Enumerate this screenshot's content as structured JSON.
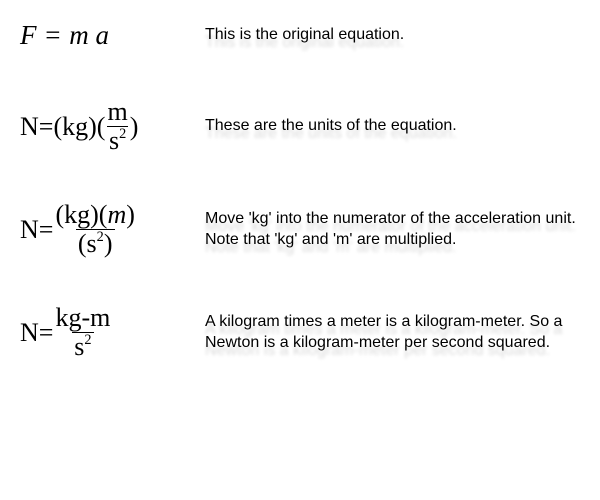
{
  "rows": [
    {
      "eq": {
        "F": "F",
        "eq": "=",
        "m": "m",
        "a": "a"
      },
      "desc": "This is the original equation."
    },
    {
      "eq": {
        "N": "N",
        "eq": "=",
        "lp1": "(",
        "kg": "kg",
        "rp1": ")",
        "lp2": "(",
        "m": "m",
        "s": "s",
        "two": "2",
        "rp2": ")"
      },
      "desc": "These are the units of the equation."
    },
    {
      "eq": {
        "N": "N",
        "eq": "=",
        "lp1": "(",
        "kg": "kg",
        "rp1": ")",
        "lp2": "(",
        "m": "m",
        "rp2": ")",
        "lp3": "(",
        "s": "s",
        "two": "2",
        "rp3": ")"
      },
      "desc": "Move 'kg' into the numerator of the acceleration unit. Note that 'kg' and 'm' are multiplied."
    },
    {
      "eq": {
        "N": "N",
        "eq": "=",
        "kgm": "kg-m",
        "s": "s",
        "two": "2"
      },
      "desc": "A kilogram times a meter is a kilogram-meter. So a Newton is a kilogram-meter per second squared."
    }
  ],
  "style": {
    "text_color": "#000000",
    "background_color": "#ffffff",
    "desc_fontsize": 16,
    "eq_fontsize": 26,
    "font_equation": "Times New Roman",
    "font_desc": "Arial",
    "shadow_color": "rgba(0,0,0,0.15)"
  }
}
